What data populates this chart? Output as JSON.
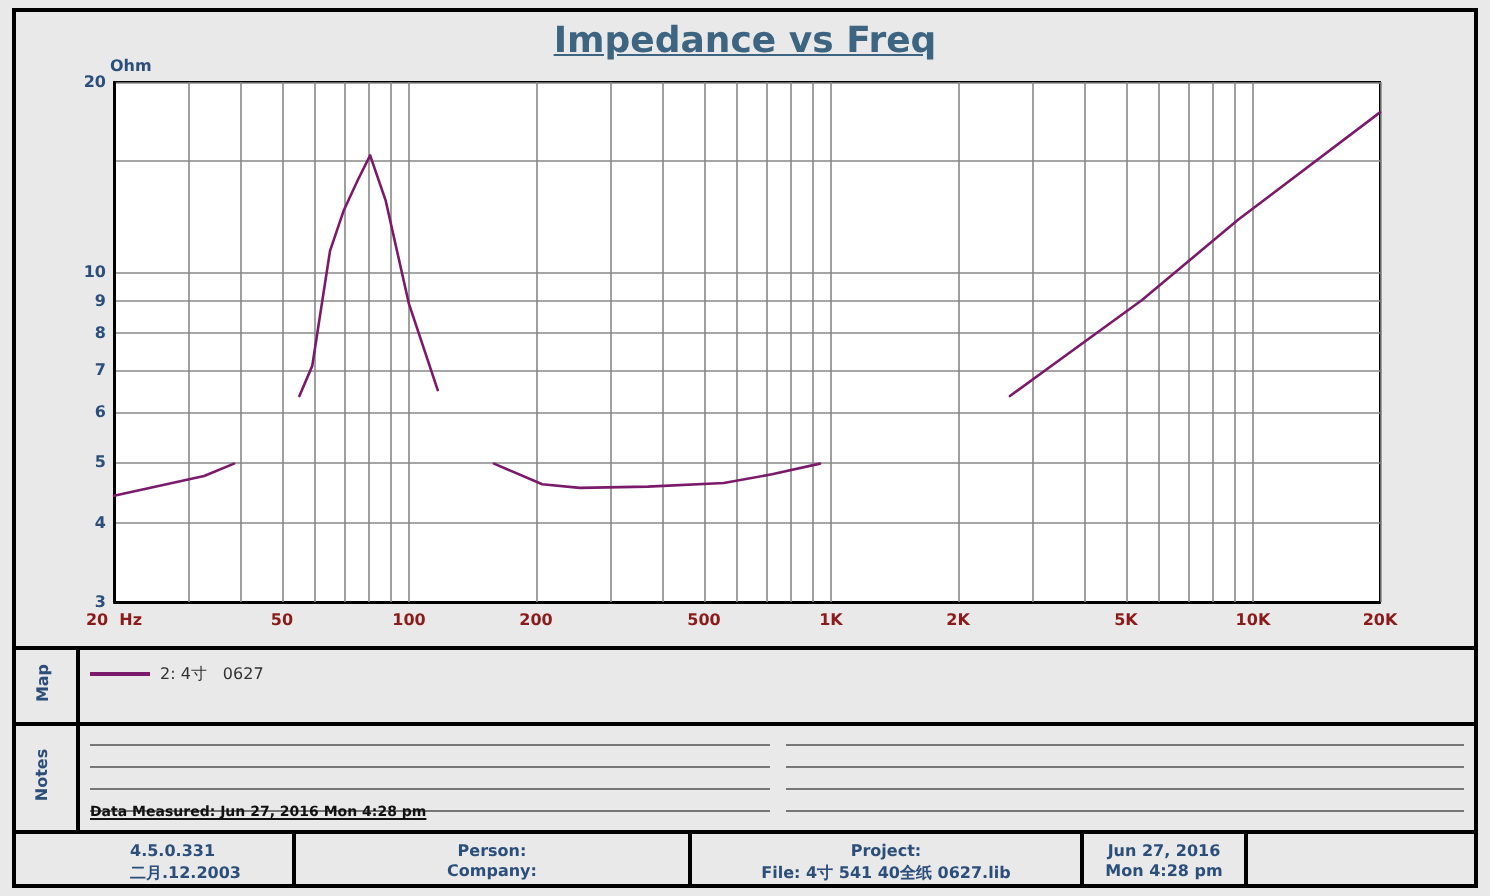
{
  "chart_data": {
    "type": "line",
    "title": "Impedance vs Freq",
    "ylabel": "Ohm",
    "log": "xy",
    "grid": true,
    "legend": "bottom",
    "marker": "none",
    "line_style": "solid",
    "xlim": [
      20,
      20000
    ],
    "ylim": [
      3,
      20
    ],
    "xticks": [
      {
        "value": 20,
        "label": "20  Hz"
      },
      {
        "value": 30,
        "label": null
      },
      {
        "value": 40,
        "label": null
      },
      50,
      {
        "value": 60,
        "label": null
      },
      {
        "value": 70,
        "label": null
      },
      {
        "value": 80,
        "label": null
      },
      {
        "value": 90,
        "label": null
      },
      100,
      200,
      {
        "value": 300,
        "label": null
      },
      {
        "value": 400,
        "label": null
      },
      500,
      {
        "value": 600,
        "label": null
      },
      {
        "value": 700,
        "label": null
      },
      {
        "value": 800,
        "label": null
      },
      {
        "value": 900,
        "label": null
      },
      {
        "value": 1000,
        "label": "1K"
      },
      {
        "value": 2000,
        "label": "2K"
      },
      {
        "value": 3000,
        "label": null
      },
      {
        "value": 4000,
        "label": null
      },
      {
        "value": 5000,
        "label": "5K"
      },
      {
        "value": 6000,
        "label": null
      },
      {
        "value": 7000,
        "label": null
      },
      {
        "value": 8000,
        "label": null
      },
      {
        "value": 9000,
        "label": null
      },
      {
        "value": 10000,
        "label": "10K"
      },
      {
        "value": 20000,
        "label": "20K"
      }
    ],
    "yticks": [
      3,
      4,
      5,
      6,
      7,
      8,
      9,
      10,
      {
        "value": 15,
        "label": null
      },
      20
    ],
    "series": [
      {
        "name": "2: 4寸　0627",
        "color": "#7b1a6b",
        "x": [
          20,
          32.7,
          38.5,
          46,
          55,
          59,
          65,
          70,
          75.7,
          80.9,
          88,
          100,
          117,
          138,
          159,
          207,
          254,
          368,
          557,
          725,
          942,
          1600,
          2655,
          5460,
          9220,
          20000
        ],
        "values": [
          4.42,
          4.75,
          4.97,
          null,
          6.36,
          7.1,
          10.8,
          12.5,
          14.0,
          15.3,
          13.0,
          8.9,
          6.5,
          null,
          4.97,
          4.61,
          4.55,
          4.57,
          4.63,
          4.78,
          4.97,
          null,
          6.36,
          9.03,
          12.1,
          17.9
        ]
      }
    ],
    "annotations": [
      "Map",
      "Notes",
      "Data Measured: Jun 27, 2016  Mon  4:28 pm",
      "4.5.0.331",
      "二月.12.2003",
      "Person:",
      "Company:",
      "Project:",
      "File: 4寸  541   40全纸   0627.lib",
      "Jun 27, 2016",
      "Mon  4:28 pm"
    ]
  }
}
